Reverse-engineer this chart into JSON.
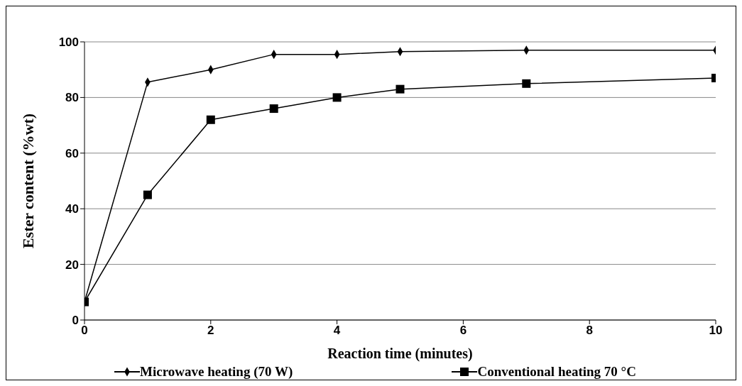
{
  "chart_data": {
    "type": "line",
    "xlabel": "Reaction time (minutes)",
    "ylabel": "Ester content (%wt)",
    "x": [
      0,
      1,
      2,
      3,
      4,
      5,
      7,
      10
    ],
    "series": [
      {
        "name": "Microwave heating (70 W)",
        "color": "#000000",
        "marker": "diamond",
        "values": [
          6.5,
          85.5,
          90,
          95.5,
          95.5,
          96.5,
          97,
          97
        ]
      },
      {
        "name": "Conventional heating 70 °C",
        "color": "#000000",
        "marker": "square",
        "values": [
          6.5,
          45,
          72,
          76,
          80,
          83,
          85,
          87
        ]
      }
    ],
    "xlim": [
      0,
      10
    ],
    "xticks": [
      0,
      2,
      4,
      6,
      8,
      10
    ],
    "ylim": [
      0,
      100
    ],
    "yticks": [
      0,
      20,
      40,
      60,
      80,
      100
    ],
    "grid": "y",
    "legend": "bottom",
    "line_style": "solid"
  }
}
